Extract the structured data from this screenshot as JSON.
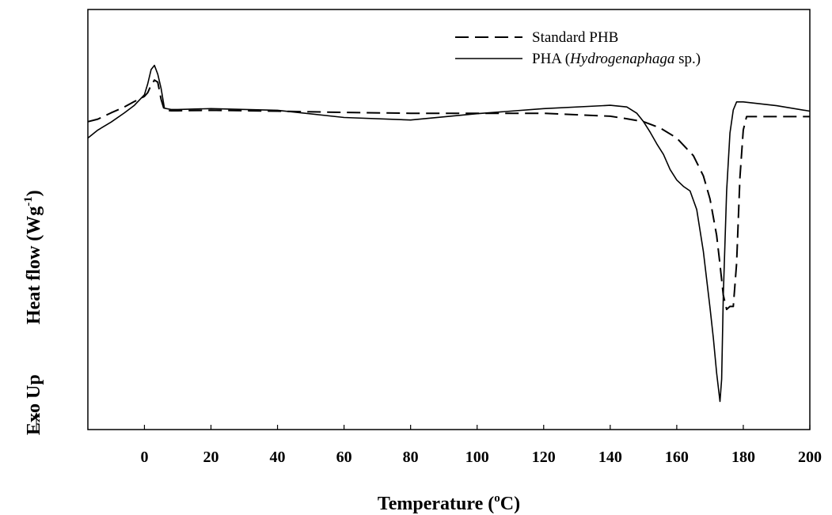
{
  "chart_data": {
    "type": "line",
    "title": "",
    "xlabel": {
      "main": "Temperature (",
      "sup": "o",
      "unit": "C)"
    },
    "ylabel": {
      "exo_up": "Exo Up",
      "arrow": "→",
      "main": "Heat flow (Wg",
      "sup": "-1",
      "close": ")"
    },
    "xlim": [
      -17,
      200
    ],
    "ylim": [
      0,
      1
    ],
    "x_ticks": [
      0,
      20,
      40,
      60,
      80,
      100,
      120,
      140,
      160,
      180,
      200
    ],
    "y_ticks_shown": false,
    "legend": {
      "placement": "top-right",
      "entries": [
        {
          "name": "Standard PHB",
          "style": "dashed"
        },
        {
          "name_prefix": "PHA  (",
          "name_italic": "Hydrogenaphaga",
          "name_suffix": " sp.)",
          "style": "solid"
        }
      ]
    },
    "series": [
      {
        "name": "Standard PHB",
        "style": "dashed",
        "x": [
          -17,
          -14,
          -10,
          -6,
          -3,
          0,
          1,
          2,
          3,
          4,
          5,
          6,
          8,
          10,
          20,
          40,
          60,
          80,
          100,
          120,
          140,
          145,
          150,
          155,
          160,
          165,
          168,
          170,
          172,
          173,
          174,
          175,
          176,
          177,
          178,
          179,
          180,
          181,
          190,
          200
        ],
        "y": [
          0.733,
          0.739,
          0.754,
          0.768,
          0.781,
          0.793,
          0.802,
          0.82,
          0.832,
          0.827,
          0.786,
          0.76,
          0.759,
          0.759,
          0.76,
          0.758,
          0.755,
          0.753,
          0.753,
          0.753,
          0.746,
          0.74,
          0.733,
          0.718,
          0.694,
          0.652,
          0.604,
          0.549,
          0.462,
          0.393,
          0.32,
          0.286,
          0.293,
          0.293,
          0.396,
          0.6,
          0.713,
          0.745,
          0.745,
          0.745
        ]
      },
      {
        "name": "PHA (Hydrogenaphaga sp.)",
        "style": "solid",
        "x": [
          -17,
          -14,
          -10,
          -6,
          -3,
          0,
          1,
          2,
          3,
          4,
          5,
          6,
          8,
          10,
          20,
          40,
          60,
          80,
          100,
          120,
          140,
          145,
          148,
          150,
          152,
          154,
          156,
          158,
          160,
          162,
          164,
          166,
          168,
          170,
          171,
          172,
          173,
          173.5,
          174,
          175,
          176,
          177,
          178,
          180,
          190,
          200
        ],
        "y": [
          0.694,
          0.713,
          0.732,
          0.754,
          0.772,
          0.797,
          0.823,
          0.857,
          0.867,
          0.846,
          0.812,
          0.765,
          0.762,
          0.762,
          0.764,
          0.76,
          0.743,
          0.737,
          0.752,
          0.764,
          0.772,
          0.768,
          0.753,
          0.733,
          0.708,
          0.68,
          0.655,
          0.619,
          0.594,
          0.579,
          0.568,
          0.524,
          0.424,
          0.29,
          0.218,
          0.134,
          0.067,
          0.12,
          0.32,
          0.568,
          0.706,
          0.761,
          0.78,
          0.78,
          0.771,
          0.758
        ]
      }
    ]
  }
}
